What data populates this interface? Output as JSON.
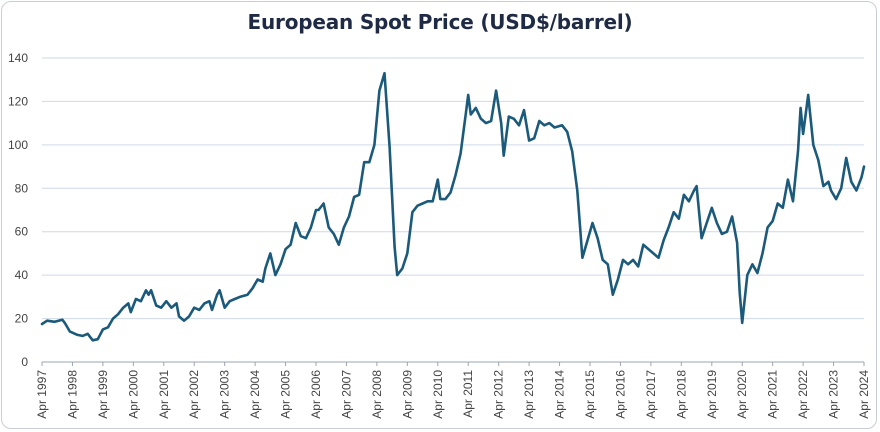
{
  "chart_data": {
    "type": "line",
    "title": "European Spot Price (USD$/barrel)",
    "xlabel": "",
    "ylabel": "",
    "ylim": [
      0,
      140
    ],
    "yticks": [
      0,
      20,
      40,
      60,
      80,
      100,
      120,
      140
    ],
    "xticks": [
      "Apr 1997",
      "Apr 1998",
      "Apr 1999",
      "Apr 2000",
      "Apr 2001",
      "Apr 2002",
      "Apr 2003",
      "Apr 2004",
      "Apr 2005",
      "Apr 2006",
      "Apr 2007",
      "Apr 2008",
      "Apr 2009",
      "Apr 2010",
      "Apr 2011",
      "Apr 2012",
      "Apr 2013",
      "Apr 2014",
      "Apr 2015",
      "Apr 2016",
      "Apr 2017",
      "Apr 2018",
      "Apr 2019",
      "Apr 2020",
      "Apr 2021",
      "Apr 2022",
      "Apr 2023",
      "Apr 2024"
    ],
    "grid": "horizontal",
    "color": "#1b5a7a",
    "series": [
      {
        "points": [
          [
            "1997-04",
            17.5
          ],
          [
            "1997-06",
            19
          ],
          [
            "1997-09",
            18.5
          ],
          [
            "1997-12",
            19.5
          ],
          [
            "1998-01",
            18
          ],
          [
            "1998-03",
            14
          ],
          [
            "1998-06",
            12.5
          ],
          [
            "1998-08",
            12
          ],
          [
            "1998-10",
            13
          ],
          [
            "1998-12",
            10
          ],
          [
            "1999-02",
            10.5
          ],
          [
            "1999-04",
            15
          ],
          [
            "1999-06",
            16
          ],
          [
            "1999-08",
            20
          ],
          [
            "1999-10",
            22
          ],
          [
            "1999-12",
            25
          ],
          [
            "2000-02",
            27
          ],
          [
            "2000-03",
            23
          ],
          [
            "2000-05",
            29
          ],
          [
            "2000-07",
            28
          ],
          [
            "2000-09",
            33
          ],
          [
            "2000-10",
            31
          ],
          [
            "2000-11",
            33
          ],
          [
            "2001-01",
            26
          ],
          [
            "2001-03",
            25
          ],
          [
            "2001-05",
            28
          ],
          [
            "2001-07",
            25
          ],
          [
            "2001-09",
            27
          ],
          [
            "2001-10",
            21
          ],
          [
            "2001-12",
            19
          ],
          [
            "2002-02",
            21
          ],
          [
            "2002-04",
            25
          ],
          [
            "2002-06",
            24
          ],
          [
            "2002-08",
            27
          ],
          [
            "2002-10",
            28
          ],
          [
            "2002-11",
            24
          ],
          [
            "2003-01",
            31
          ],
          [
            "2003-02",
            33
          ],
          [
            "2003-04",
            25
          ],
          [
            "2003-06",
            28
          ],
          [
            "2003-08",
            29
          ],
          [
            "2003-10",
            30
          ],
          [
            "2004-01",
            31
          ],
          [
            "2004-03",
            34
          ],
          [
            "2004-05",
            38
          ],
          [
            "2004-07",
            37
          ],
          [
            "2004-08",
            43
          ],
          [
            "2004-10",
            50
          ],
          [
            "2004-12",
            40
          ],
          [
            "2005-02",
            45
          ],
          [
            "2005-04",
            52
          ],
          [
            "2005-06",
            54
          ],
          [
            "2005-08",
            64
          ],
          [
            "2005-10",
            58
          ],
          [
            "2005-12",
            57
          ],
          [
            "2006-02",
            62
          ],
          [
            "2006-04",
            70
          ],
          [
            "2006-05",
            70
          ],
          [
            "2006-07",
            73
          ],
          [
            "2006-09",
            62
          ],
          [
            "2006-11",
            59
          ],
          [
            "2007-01",
            54
          ],
          [
            "2007-03",
            62
          ],
          [
            "2007-05",
            67
          ],
          [
            "2007-07",
            76
          ],
          [
            "2007-09",
            77
          ],
          [
            "2007-11",
            92
          ],
          [
            "2008-01",
            92
          ],
          [
            "2008-03",
            100
          ],
          [
            "2008-05",
            125
          ],
          [
            "2008-07",
            133
          ],
          [
            "2008-09",
            99
          ],
          [
            "2008-11",
            53
          ],
          [
            "2008-12",
            40
          ],
          [
            "2009-02",
            43
          ],
          [
            "2009-04",
            50
          ],
          [
            "2009-06",
            69
          ],
          [
            "2009-08",
            72
          ],
          [
            "2009-10",
            73
          ],
          [
            "2009-12",
            74
          ],
          [
            "2010-02",
            74
          ],
          [
            "2010-04",
            84
          ],
          [
            "2010-05",
            75
          ],
          [
            "2010-07",
            75
          ],
          [
            "2010-09",
            78
          ],
          [
            "2010-11",
            86
          ],
          [
            "2011-01",
            96
          ],
          [
            "2011-03",
            114
          ],
          [
            "2011-04",
            123
          ],
          [
            "2011-05",
            114
          ],
          [
            "2011-07",
            117
          ],
          [
            "2011-09",
            112
          ],
          [
            "2011-11",
            110
          ],
          [
            "2012-01",
            111
          ],
          [
            "2012-03",
            125
          ],
          [
            "2012-05",
            110
          ],
          [
            "2012-06",
            95
          ],
          [
            "2012-08",
            113
          ],
          [
            "2012-10",
            112
          ],
          [
            "2012-12",
            109
          ],
          [
            "2013-02",
            116
          ],
          [
            "2013-04",
            102
          ],
          [
            "2013-06",
            103
          ],
          [
            "2013-08",
            111
          ],
          [
            "2013-10",
            109
          ],
          [
            "2013-12",
            110
          ],
          [
            "2014-02",
            108
          ],
          [
            "2014-05",
            109
          ],
          [
            "2014-07",
            106
          ],
          [
            "2014-09",
            97
          ],
          [
            "2014-11",
            79
          ],
          [
            "2015-01",
            48
          ],
          [
            "2015-03",
            56
          ],
          [
            "2015-05",
            64
          ],
          [
            "2015-07",
            57
          ],
          [
            "2015-09",
            47
          ],
          [
            "2015-11",
            45
          ],
          [
            "2016-01",
            31
          ],
          [
            "2016-03",
            38
          ],
          [
            "2016-05",
            47
          ],
          [
            "2016-07",
            45
          ],
          [
            "2016-09",
            47
          ],
          [
            "2016-11",
            44
          ],
          [
            "2017-01",
            54
          ],
          [
            "2017-03",
            52
          ],
          [
            "2017-05",
            50
          ],
          [
            "2017-07",
            48
          ],
          [
            "2017-09",
            56
          ],
          [
            "2017-11",
            62
          ],
          [
            "2018-01",
            69
          ],
          [
            "2018-03",
            66
          ],
          [
            "2018-05",
            77
          ],
          [
            "2018-07",
            74
          ],
          [
            "2018-09",
            79
          ],
          [
            "2018-10",
            81
          ],
          [
            "2018-12",
            57
          ],
          [
            "2019-02",
            64
          ],
          [
            "2019-04",
            71
          ],
          [
            "2019-06",
            64
          ],
          [
            "2019-08",
            59
          ],
          [
            "2019-10",
            60
          ],
          [
            "2019-12",
            67
          ],
          [
            "2020-02",
            55
          ],
          [
            "2020-03",
            32
          ],
          [
            "2020-04",
            18
          ],
          [
            "2020-06",
            40
          ],
          [
            "2020-08",
            45
          ],
          [
            "2020-10",
            41
          ],
          [
            "2020-12",
            50
          ],
          [
            "2021-02",
            62
          ],
          [
            "2021-04",
            65
          ],
          [
            "2021-06",
            73
          ],
          [
            "2021-08",
            71
          ],
          [
            "2021-10",
            84
          ],
          [
            "2021-12",
            74
          ],
          [
            "2022-02",
            97
          ],
          [
            "2022-03",
            117
          ],
          [
            "2022-04",
            105
          ],
          [
            "2022-06",
            123
          ],
          [
            "2022-08",
            100
          ],
          [
            "2022-10",
            93
          ],
          [
            "2022-12",
            81
          ],
          [
            "2023-02",
            83
          ],
          [
            "2023-03",
            79
          ],
          [
            "2023-05",
            75
          ],
          [
            "2023-07",
            80
          ],
          [
            "2023-09",
            94
          ],
          [
            "2023-11",
            83
          ],
          [
            "2024-01",
            79
          ],
          [
            "2024-03",
            85
          ],
          [
            "2024-04",
            90
          ]
        ]
      }
    ]
  }
}
